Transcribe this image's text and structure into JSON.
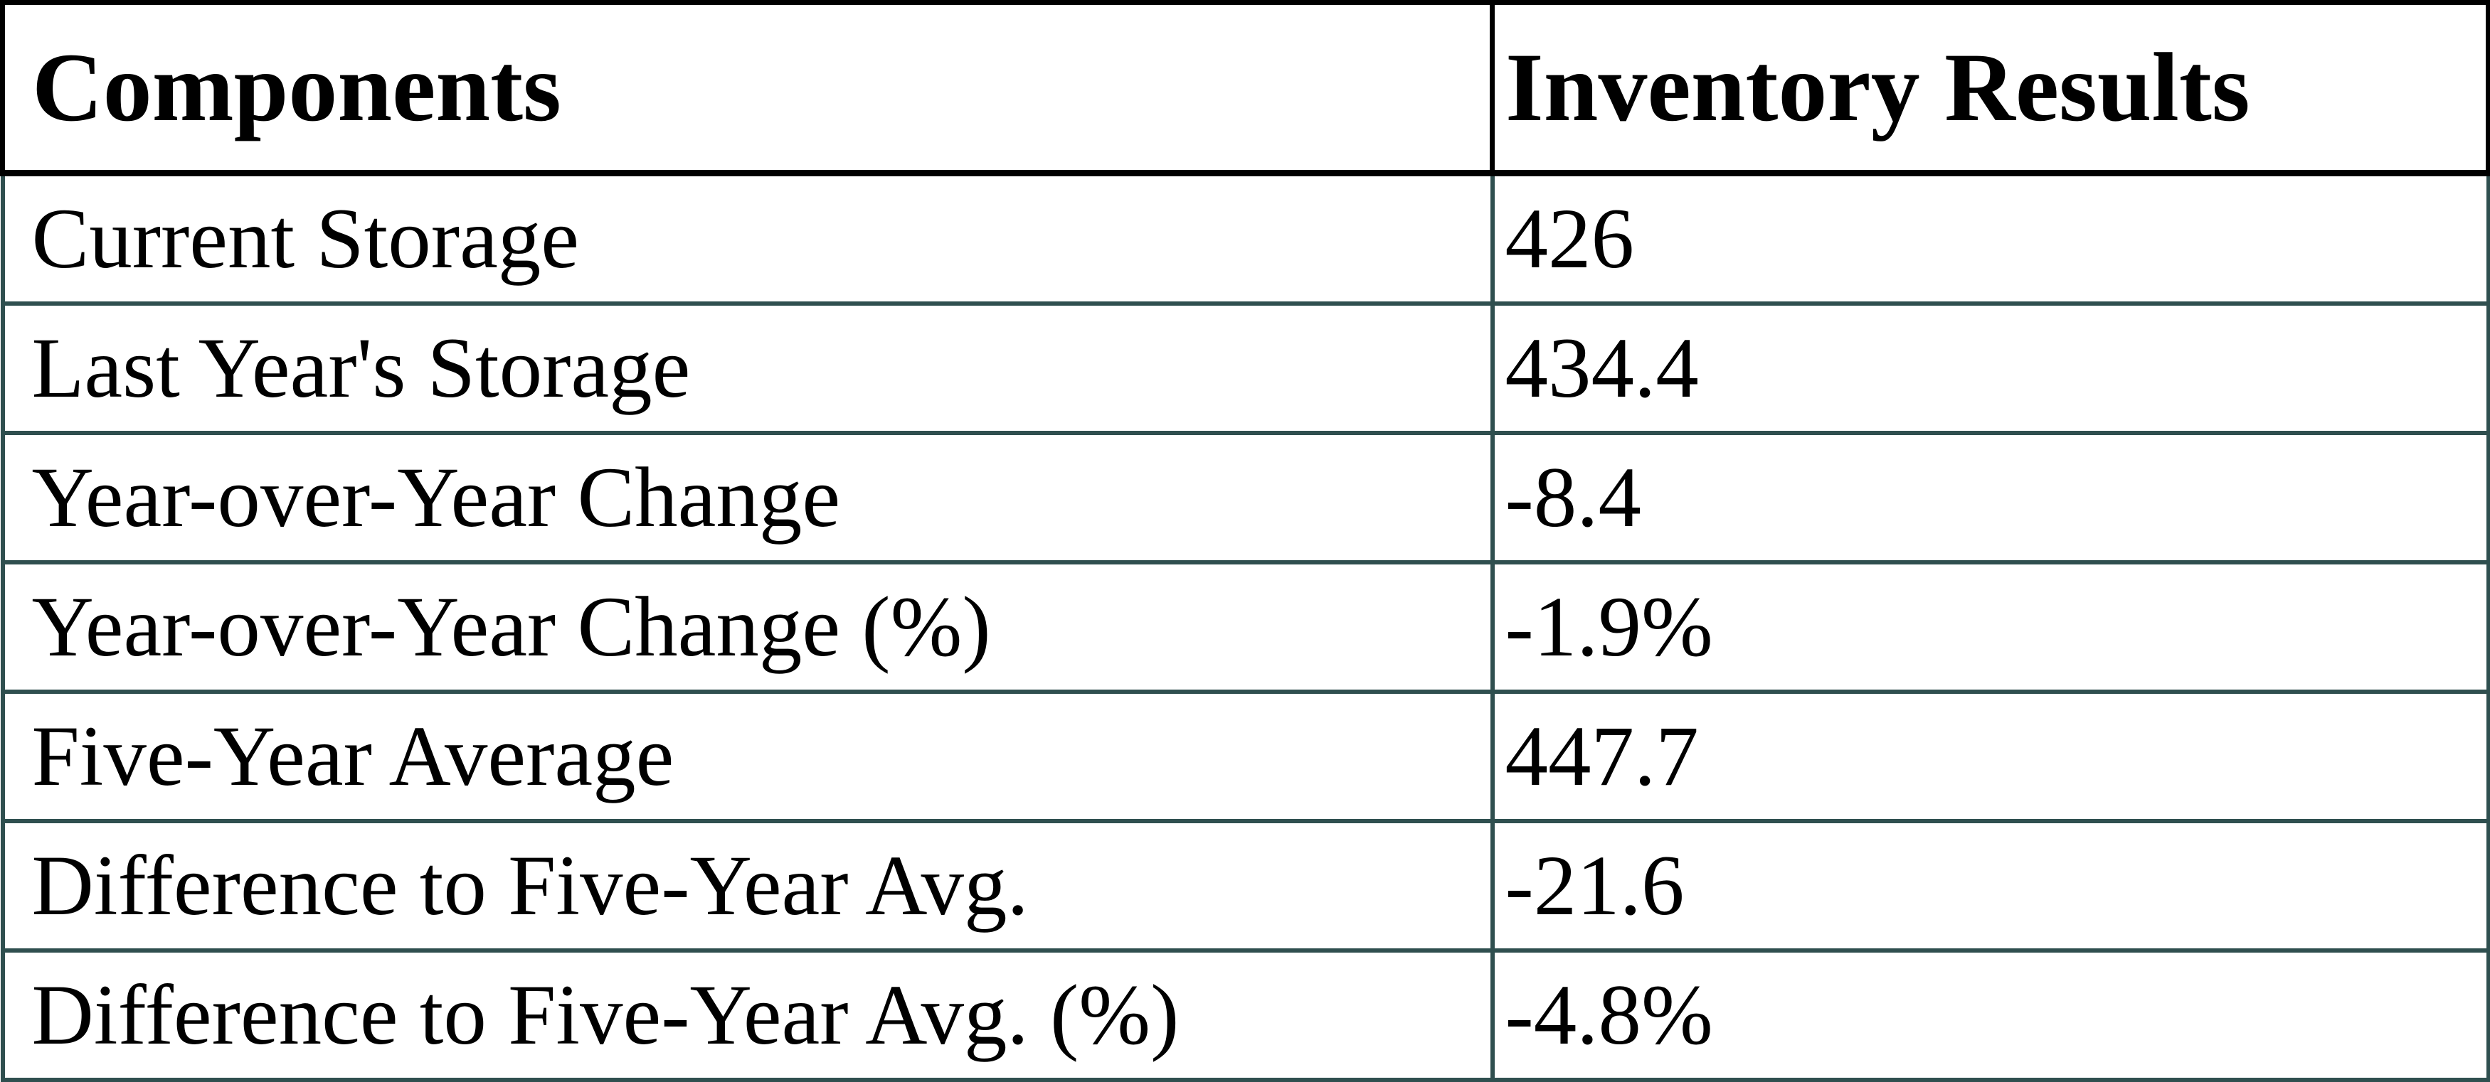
{
  "chart_data": {
    "type": "table",
    "columns": [
      "Components",
      "Inventory Results"
    ],
    "rows": [
      {
        "label": "Current Storage",
        "value": "426"
      },
      {
        "label": "Last Year's Storage",
        "value": "434.4"
      },
      {
        "label": "Year-over-Year Change",
        "value": "-8.4"
      },
      {
        "label": "Year-over-Year Change (%)",
        "value": "-1.9%"
      },
      {
        "label": "Five-Year Average",
        "value": "447.7"
      },
      {
        "label": "Difference to Five-Year Avg.",
        "value": "-21.6"
      },
      {
        "label": "Difference to Five-Year Avg. (%)",
        "value": "-4.8%"
      }
    ]
  },
  "colors": {
    "header_border": "#000000",
    "body_border": "#2f4f4f",
    "text": "#000000",
    "background": "#ffffff"
  }
}
